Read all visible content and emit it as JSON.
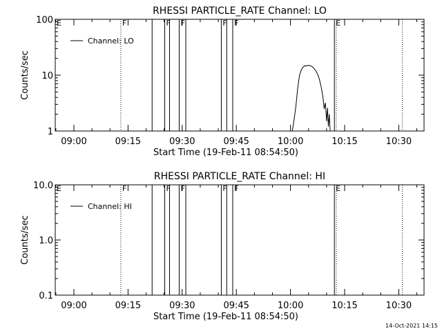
{
  "footer": {
    "timestamp": "14-Oct-2021 14:15"
  },
  "chart_data": [
    {
      "type": "line",
      "title": "RHESSI PARTICLE_RATE Channel: LO",
      "xlabel": "Start Time (19-Feb-11 08:54:50)",
      "ylabel": "Counts/sec",
      "xlim": [
        "08:54:50",
        "10:37:00"
      ],
      "ylim": [
        1,
        100
      ],
      "yscale": "log",
      "yticks": [
        1,
        10,
        100
      ],
      "ytick_labels": [
        "1",
        "10",
        "100"
      ],
      "xticks": [
        "09:00",
        "09:15",
        "09:30",
        "09:45",
        "10:00",
        "10:15",
        "10:30"
      ],
      "legend": {
        "placement": "top-left",
        "entries": [
          "Channel: LO"
        ]
      },
      "grid": false,
      "series": [
        {
          "name": "Channel: LO",
          "points": [
            [
              "10:00:30",
              1
            ],
            [
              "10:01:00",
              1.6
            ],
            [
              "10:01:30",
              2.8
            ],
            [
              "10:02:00",
              6
            ],
            [
              "10:02:30",
              10
            ],
            [
              "10:03:00",
              12.5
            ],
            [
              "10:03:30",
              14
            ],
            [
              "10:04:00",
              14.8
            ],
            [
              "10:04:30",
              14.6
            ],
            [
              "10:05:00",
              15
            ],
            [
              "10:05:30",
              14.7
            ],
            [
              "10:06:00",
              14.2
            ],
            [
              "10:06:30",
              13.2
            ],
            [
              "10:07:00",
              12
            ],
            [
              "10:07:30",
              10.5
            ],
            [
              "10:08:00",
              8.5
            ],
            [
              "10:08:30",
              6.2
            ],
            [
              "10:09:00",
              4
            ],
            [
              "10:09:20",
              2.5
            ],
            [
              "10:09:40",
              3.2
            ],
            [
              "10:10:00",
              1.5
            ],
            [
              "10:10:15",
              2.6
            ],
            [
              "10:10:30",
              1.2
            ],
            [
              "10:10:45",
              2.0
            ],
            [
              "10:11:00",
              1
            ]
          ]
        }
      ],
      "markers": [
        {
          "time": "09:13:00",
          "label": "F",
          "style": "dotted"
        },
        {
          "time": "09:21:40",
          "label": "",
          "style": "solid"
        },
        {
          "time": "09:25:10",
          "label": "F",
          "style": "solid"
        },
        {
          "time": "09:26:30",
          "label": "",
          "style": "solid"
        },
        {
          "time": "09:29:10",
          "label": "F",
          "style": "solid"
        },
        {
          "time": "09:31:00",
          "label": "",
          "style": "solid"
        },
        {
          "time": "09:40:50",
          "label": "F",
          "style": "solid"
        },
        {
          "time": "09:42:20",
          "label": "",
          "style": "solid"
        },
        {
          "time": "09:44:00",
          "label": "F",
          "style": "solid"
        },
        {
          "time": "10:12:10",
          "label": "E",
          "style": "solid"
        },
        {
          "time": "10:12:40",
          "label": "",
          "style": "dotted"
        },
        {
          "time": "10:31:00",
          "label": "",
          "style": "dotted"
        }
      ],
      "left_marker": "E"
    },
    {
      "type": "line",
      "title": "RHESSI PARTICLE_RATE Channel: HI",
      "xlabel": "Start Time (19-Feb-11 08:54:50)",
      "ylabel": "Counts/sec",
      "xlim": [
        "08:54:50",
        "10:37:00"
      ],
      "ylim": [
        0.1,
        10
      ],
      "yscale": "log",
      "yticks": [
        0.1,
        1,
        10
      ],
      "ytick_labels": [
        "0.1",
        "1.0",
        "10.0"
      ],
      "xticks": [
        "09:00",
        "09:15",
        "09:30",
        "09:45",
        "10:00",
        "10:15",
        "10:30"
      ],
      "legend": {
        "placement": "top-left",
        "entries": [
          "Channel: HI"
        ]
      },
      "grid": false,
      "series": [
        {
          "name": "Channel: HI",
          "points": []
        }
      ],
      "markers": [
        {
          "time": "09:13:00",
          "label": "F",
          "style": "dotted"
        },
        {
          "time": "09:21:40",
          "label": "",
          "style": "solid"
        },
        {
          "time": "09:25:10",
          "label": "F",
          "style": "solid"
        },
        {
          "time": "09:26:30",
          "label": "",
          "style": "solid"
        },
        {
          "time": "09:29:10",
          "label": "F",
          "style": "solid"
        },
        {
          "time": "09:31:00",
          "label": "",
          "style": "solid"
        },
        {
          "time": "09:40:50",
          "label": "F",
          "style": "solid"
        },
        {
          "time": "09:42:20",
          "label": "",
          "style": "solid"
        },
        {
          "time": "09:44:00",
          "label": "F",
          "style": "solid"
        },
        {
          "time": "10:12:10",
          "label": "E",
          "style": "solid"
        },
        {
          "time": "10:12:40",
          "label": "",
          "style": "dotted"
        },
        {
          "time": "10:31:00",
          "label": "",
          "style": "dotted"
        }
      ],
      "left_marker": "E"
    }
  ]
}
